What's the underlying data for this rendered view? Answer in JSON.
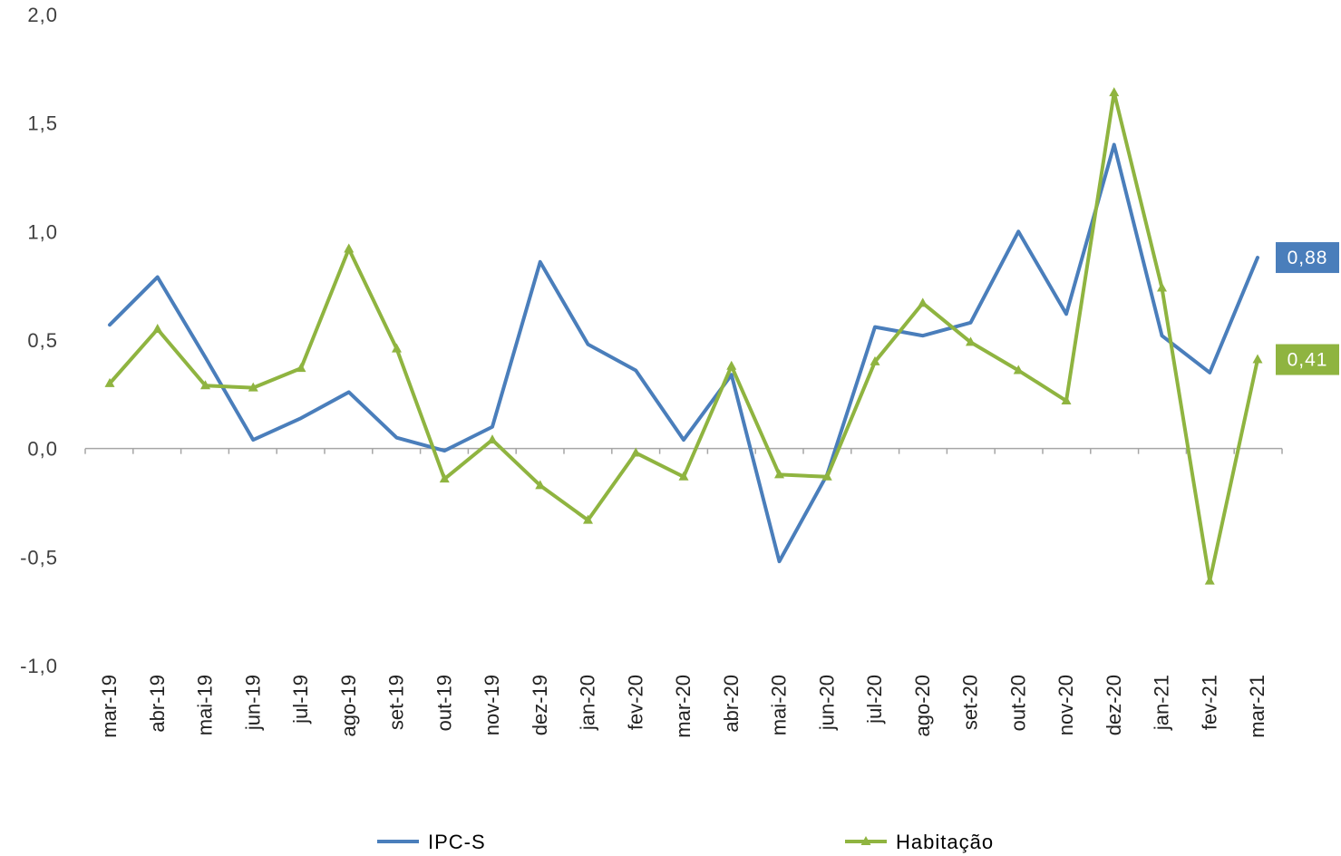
{
  "chart_data": {
    "type": "line",
    "title": "",
    "xlabel": "",
    "ylabel": "",
    "ylim": [
      -1.0,
      2.0
    ],
    "yticks": [
      "2,0",
      "1,5",
      "1,0",
      "0,5",
      "0,0",
      "-0,5",
      "-1,0"
    ],
    "ytick_values": [
      2.0,
      1.5,
      1.0,
      0.5,
      0.0,
      -0.5,
      -1.0
    ],
    "categories": [
      "mar-19",
      "abr-19",
      "mai-19",
      "jun-19",
      "jul-19",
      "ago-19",
      "set-19",
      "out-19",
      "nov-19",
      "dez-19",
      "jan-20",
      "fev-20",
      "mar-20",
      "abr-20",
      "mai-20",
      "jun-20",
      "jul-20",
      "ago-20",
      "set-20",
      "out-20",
      "nov-20",
      "dez-20",
      "jan-21",
      "fev-21",
      "mar-21"
    ],
    "grid": false,
    "legend_position": "bottom",
    "series": [
      {
        "name": "IPC-S",
        "color": "#4a7ebb",
        "marker": "none",
        "values": [
          0.57,
          0.79,
          0.42,
          0.04,
          0.14,
          0.26,
          0.05,
          -0.01,
          0.1,
          0.86,
          0.48,
          0.36,
          0.04,
          0.34,
          -0.52,
          -0.12,
          0.56,
          0.52,
          0.58,
          1.0,
          0.62,
          1.4,
          0.52,
          0.35,
          0.88
        ],
        "end_label": "0,88"
      },
      {
        "name": "Habitação",
        "color": "#8fb440",
        "marker": "triangle",
        "values": [
          0.3,
          0.55,
          0.29,
          0.28,
          0.37,
          0.92,
          0.46,
          -0.14,
          0.04,
          -0.17,
          -0.33,
          -0.02,
          -0.13,
          0.38,
          -0.12,
          -0.13,
          0.4,
          0.67,
          0.49,
          0.36,
          0.22,
          1.64,
          0.74,
          -0.61,
          0.41
        ],
        "end_label": "0,41"
      }
    ]
  }
}
